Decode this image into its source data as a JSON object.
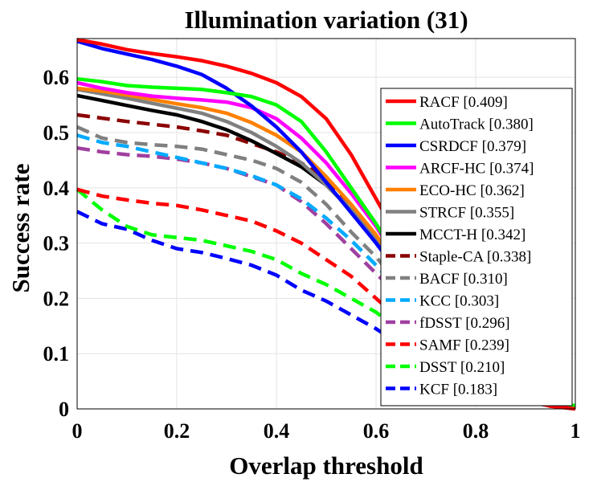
{
  "chart_data": {
    "type": "line",
    "title": "Illumination variation (31)",
    "xlabel": "Overlap threshold",
    "ylabel": "Success rate",
    "xlim": [
      0,
      1
    ],
    "ylim": [
      0,
      0.67
    ],
    "xticks": [
      0,
      0.2,
      0.4,
      0.6,
      0.8,
      1
    ],
    "xtick_labels": [
      "0",
      "0.2",
      "0.4",
      "0.6",
      "0.8",
      "1"
    ],
    "yticks": [
      0,
      0.1,
      0.2,
      0.3,
      0.4,
      0.5,
      0.6
    ],
    "ytick_labels": [
      "0",
      "0.1",
      "0.2",
      "0.3",
      "0.4",
      "0.5",
      "0.6"
    ],
    "grid": true,
    "legend_position": "right",
    "x": [
      0,
      0.05,
      0.1,
      0.15,
      0.2,
      0.25,
      0.3,
      0.35,
      0.4,
      0.45,
      0.5,
      0.55,
      0.6,
      0.65,
      0.7,
      0.75,
      0.8,
      0.85,
      0.9,
      0.95,
      1
    ],
    "series": [
      {
        "name": "RACF [0.409]",
        "color": "#ff0000",
        "dash": "solid",
        "values": [
          0.668,
          0.66,
          0.65,
          0.643,
          0.637,
          0.63,
          0.62,
          0.607,
          0.59,
          0.565,
          0.525,
          0.46,
          0.38,
          0.3,
          0.22,
          0.15,
          0.09,
          0.05,
          0.02,
          0.005,
          0.0
        ]
      },
      {
        "name": "AutoTrack [0.380]",
        "color": "#00ff00",
        "dash": "solid",
        "values": [
          0.597,
          0.592,
          0.585,
          0.582,
          0.58,
          0.578,
          0.572,
          0.565,
          0.55,
          0.52,
          0.465,
          0.4,
          0.335,
          0.26,
          0.2,
          0.14,
          0.09,
          0.055,
          0.03,
          0.015,
          0.005
        ]
      },
      {
        "name": "CSRDCF [0.379]",
        "color": "#0000ff",
        "dash": "solid",
        "values": [
          0.665,
          0.652,
          0.642,
          0.632,
          0.62,
          0.605,
          0.58,
          0.548,
          0.51,
          0.465,
          0.41,
          0.355,
          0.3,
          0.24,
          0.18,
          0.13,
          0.085,
          0.05,
          0.025,
          0.01,
          0.003
        ]
      },
      {
        "name": "ARCF-HC [0.374]",
        "color": "#ff00ff",
        "dash": "solid",
        "values": [
          0.59,
          0.58,
          0.572,
          0.566,
          0.562,
          0.559,
          0.555,
          0.545,
          0.525,
          0.49,
          0.445,
          0.39,
          0.33,
          0.26,
          0.2,
          0.14,
          0.09,
          0.055,
          0.03,
          0.012,
          0.004
        ]
      },
      {
        "name": "ECO-HC [0.362]",
        "color": "#ff8000",
        "dash": "solid",
        "values": [
          0.58,
          0.575,
          0.568,
          0.56,
          0.552,
          0.545,
          0.535,
          0.518,
          0.495,
          0.465,
          0.42,
          0.37,
          0.315,
          0.25,
          0.19,
          0.135,
          0.085,
          0.05,
          0.025,
          0.01,
          0.003
        ]
      },
      {
        "name": "STRCF [0.355]",
        "color": "#808080",
        "dash": "solid",
        "values": [
          0.578,
          0.57,
          0.562,
          0.553,
          0.544,
          0.535,
          0.52,
          0.5,
          0.475,
          0.445,
          0.405,
          0.36,
          0.31,
          0.245,
          0.185,
          0.13,
          0.085,
          0.05,
          0.025,
          0.01,
          0.003
        ]
      },
      {
        "name": "MCCT-H [0.342]",
        "color": "#000000",
        "dash": "solid",
        "values": [
          0.567,
          0.558,
          0.549,
          0.54,
          0.532,
          0.52,
          0.505,
          0.485,
          0.462,
          0.438,
          0.405,
          0.36,
          0.31,
          0.245,
          0.185,
          0.13,
          0.085,
          0.05,
          0.025,
          0.01,
          0.003
        ]
      },
      {
        "name": "Staple-CA [0.338]",
        "color": "#8b0000",
        "dash": "dashed",
        "values": [
          0.532,
          0.526,
          0.52,
          0.515,
          0.51,
          0.503,
          0.495,
          0.48,
          0.465,
          0.445,
          0.415,
          0.37,
          0.31,
          0.245,
          0.185,
          0.13,
          0.085,
          0.05,
          0.025,
          0.01,
          0.003
        ]
      },
      {
        "name": "BACF [0.310]",
        "color": "#808080",
        "dash": "dashed",
        "values": [
          0.51,
          0.49,
          0.482,
          0.478,
          0.475,
          0.47,
          0.46,
          0.45,
          0.435,
          0.41,
          0.37,
          0.32,
          0.275,
          0.22,
          0.17,
          0.125,
          0.08,
          0.05,
          0.025,
          0.01,
          0.003
        ]
      },
      {
        "name": "KCC [0.303]",
        "color": "#00aaff",
        "dash": "dashed",
        "values": [
          0.495,
          0.482,
          0.475,
          0.465,
          0.455,
          0.445,
          0.435,
          0.422,
          0.405,
          0.38,
          0.345,
          0.305,
          0.26,
          0.21,
          0.16,
          0.115,
          0.075,
          0.045,
          0.022,
          0.01,
          0.003
        ]
      },
      {
        "name": "fDSST [0.296]",
        "color": "#a040a0",
        "dash": "dashed",
        "values": [
          0.472,
          0.465,
          0.46,
          0.457,
          0.452,
          0.445,
          0.435,
          0.42,
          0.405,
          0.375,
          0.335,
          0.29,
          0.245,
          0.2,
          0.155,
          0.11,
          0.07,
          0.04,
          0.02,
          0.008,
          0.002
        ]
      },
      {
        "name": "SAMF [0.239]",
        "color": "#ff0000",
        "dash": "dashed",
        "values": [
          0.397,
          0.385,
          0.378,
          0.372,
          0.368,
          0.36,
          0.35,
          0.34,
          0.322,
          0.3,
          0.27,
          0.24,
          0.2,
          0.16,
          0.12,
          0.085,
          0.055,
          0.03,
          0.015,
          0.005,
          0.002
        ]
      },
      {
        "name": "DSST [0.210]",
        "color": "#00ff00",
        "dash": "dashed",
        "values": [
          0.397,
          0.36,
          0.33,
          0.315,
          0.31,
          0.305,
          0.295,
          0.285,
          0.27,
          0.245,
          0.225,
          0.2,
          0.175,
          0.14,
          0.1,
          0.07,
          0.045,
          0.025,
          0.012,
          0.008,
          0.006
        ]
      },
      {
        "name": "KCF [0.183]",
        "color": "#0000ff",
        "dash": "dashed",
        "values": [
          0.357,
          0.335,
          0.325,
          0.305,
          0.29,
          0.283,
          0.272,
          0.26,
          0.242,
          0.215,
          0.195,
          0.17,
          0.145,
          0.115,
          0.085,
          0.06,
          0.04,
          0.025,
          0.012,
          0.006,
          0.003
        ]
      }
    ]
  }
}
